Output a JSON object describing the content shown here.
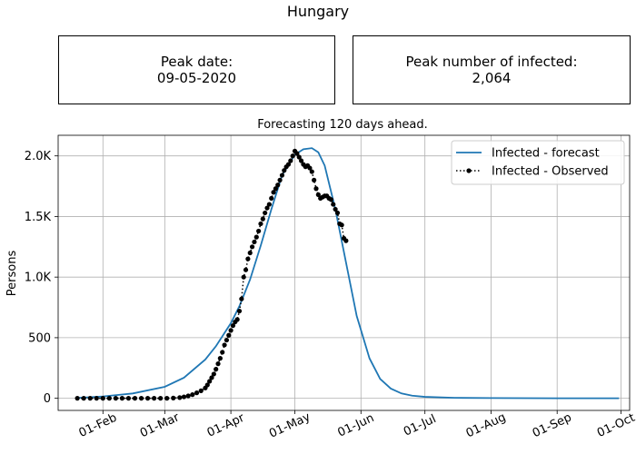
{
  "figure": {
    "title": "Hungary"
  },
  "kpis": [
    {
      "label": "Peak date:",
      "value": "09-05-2020"
    },
    {
      "label": "Peak number of infected:",
      "value": "2,064"
    }
  ],
  "chart_data": {
    "type": "line",
    "title": "Forecasting 120 days ahead.",
    "xlabel": "",
    "ylabel": "Persons",
    "x_axis": {
      "type": "date",
      "range": [
        "2020-01-11",
        "2020-10-05"
      ],
      "ticks": [
        {
          "date": "2020-02-01",
          "label": "01-Feb"
        },
        {
          "date": "2020-03-01",
          "label": "01-Mar"
        },
        {
          "date": "2020-04-01",
          "label": "01-Apr"
        },
        {
          "date": "2020-05-01",
          "label": "01-May"
        },
        {
          "date": "2020-06-01",
          "label": "01-Jun"
        },
        {
          "date": "2020-07-01",
          "label": "01-Jul"
        },
        {
          "date": "2020-08-01",
          "label": "01-Aug"
        },
        {
          "date": "2020-09-01",
          "label": "01-Sep"
        },
        {
          "date": "2020-10-01",
          "label": "01-Oct"
        }
      ]
    },
    "y_axis": {
      "range": [
        -100,
        2170
      ],
      "ticks": [
        {
          "value": 0,
          "label": "0"
        },
        {
          "value": 500,
          "label": "500"
        },
        {
          "value": 1000,
          "label": "1.0K"
        },
        {
          "value": 1500,
          "label": "1.5K"
        },
        {
          "value": 2000,
          "label": "2.0K"
        }
      ]
    },
    "grid": true,
    "legend": {
      "position": "top-right"
    },
    "series": [
      {
        "name": "Infected - forecast",
        "color": "#1f77b4",
        "style": "solid",
        "points": [
          [
            "2020-01-20",
            3
          ],
          [
            "2020-02-01",
            15
          ],
          [
            "2020-02-15",
            40
          ],
          [
            "2020-03-01",
            95
          ],
          [
            "2020-03-10",
            170
          ],
          [
            "2020-03-20",
            320
          ],
          [
            "2020-03-25",
            430
          ],
          [
            "2020-04-01",
            620
          ],
          [
            "2020-04-05",
            760
          ],
          [
            "2020-04-10",
            980
          ],
          [
            "2020-04-15",
            1260
          ],
          [
            "2020-04-20",
            1560
          ],
          [
            "2020-04-25",
            1840
          ],
          [
            "2020-05-01",
            2010
          ],
          [
            "2020-05-05",
            2055
          ],
          [
            "2020-05-09",
            2064
          ],
          [
            "2020-05-12",
            2030
          ],
          [
            "2020-05-15",
            1920
          ],
          [
            "2020-05-20",
            1560
          ],
          [
            "2020-05-25",
            1120
          ],
          [
            "2020-05-30",
            680
          ],
          [
            "2020-06-05",
            330
          ],
          [
            "2020-06-10",
            160
          ],
          [
            "2020-06-15",
            80
          ],
          [
            "2020-06-20",
            40
          ],
          [
            "2020-06-25",
            22
          ],
          [
            "2020-07-01",
            12
          ],
          [
            "2020-07-15",
            4
          ],
          [
            "2020-08-01",
            2
          ],
          [
            "2020-09-01",
            0
          ],
          [
            "2020-09-30",
            0
          ]
        ]
      },
      {
        "name": "Infected - Observed",
        "color": "#000000",
        "style": "dotted-markers",
        "points": [
          [
            "2020-01-20",
            0
          ],
          [
            "2020-01-23",
            0
          ],
          [
            "2020-01-26",
            0
          ],
          [
            "2020-01-29",
            0
          ],
          [
            "2020-02-01",
            0
          ],
          [
            "2020-02-04",
            0
          ],
          [
            "2020-02-07",
            0
          ],
          [
            "2020-02-10",
            0
          ],
          [
            "2020-02-13",
            0
          ],
          [
            "2020-02-16",
            0
          ],
          [
            "2020-02-19",
            0
          ],
          [
            "2020-02-22",
            0
          ],
          [
            "2020-02-25",
            0
          ],
          [
            "2020-02-28",
            0
          ],
          [
            "2020-03-02",
            0
          ],
          [
            "2020-03-05",
            2
          ],
          [
            "2020-03-08",
            6
          ],
          [
            "2020-03-10",
            12
          ],
          [
            "2020-03-12",
            20
          ],
          [
            "2020-03-14",
            30
          ],
          [
            "2020-03-16",
            45
          ],
          [
            "2020-03-18",
            62
          ],
          [
            "2020-03-20",
            85
          ],
          [
            "2020-03-21",
            110
          ],
          [
            "2020-03-22",
            140
          ],
          [
            "2020-03-23",
            170
          ],
          [
            "2020-03-24",
            200
          ],
          [
            "2020-03-25",
            240
          ],
          [
            "2020-03-26",
            285
          ],
          [
            "2020-03-27",
            330
          ],
          [
            "2020-03-28",
            380
          ],
          [
            "2020-03-29",
            440
          ],
          [
            "2020-03-30",
            480
          ],
          [
            "2020-03-31",
            520
          ],
          [
            "2020-04-01",
            560
          ],
          [
            "2020-04-02",
            600
          ],
          [
            "2020-04-03",
            630
          ],
          [
            "2020-04-04",
            650
          ],
          [
            "2020-04-05",
            720
          ],
          [
            "2020-04-06",
            820
          ],
          [
            "2020-04-07",
            1000
          ],
          [
            "2020-04-08",
            1060
          ],
          [
            "2020-04-09",
            1150
          ],
          [
            "2020-04-10",
            1200
          ],
          [
            "2020-04-11",
            1250
          ],
          [
            "2020-04-12",
            1290
          ],
          [
            "2020-04-13",
            1330
          ],
          [
            "2020-04-14",
            1380
          ],
          [
            "2020-04-15",
            1440
          ],
          [
            "2020-04-16",
            1480
          ],
          [
            "2020-04-17",
            1530
          ],
          [
            "2020-04-18",
            1570
          ],
          [
            "2020-04-19",
            1600
          ],
          [
            "2020-04-20",
            1650
          ],
          [
            "2020-04-21",
            1700
          ],
          [
            "2020-04-22",
            1730
          ],
          [
            "2020-04-23",
            1760
          ],
          [
            "2020-04-24",
            1800
          ],
          [
            "2020-04-25",
            1840
          ],
          [
            "2020-04-26",
            1880
          ],
          [
            "2020-04-27",
            1910
          ],
          [
            "2020-04-28",
            1930
          ],
          [
            "2020-04-29",
            1960
          ],
          [
            "2020-04-30",
            2000
          ],
          [
            "2020-05-01",
            2040
          ],
          [
            "2020-05-02",
            2020
          ],
          [
            "2020-05-03",
            1990
          ],
          [
            "2020-05-04",
            1960
          ],
          [
            "2020-05-05",
            1930
          ],
          [
            "2020-05-06",
            1910
          ],
          [
            "2020-05-07",
            1920
          ],
          [
            "2020-05-08",
            1900
          ],
          [
            "2020-05-09",
            1870
          ],
          [
            "2020-05-10",
            1800
          ],
          [
            "2020-05-11",
            1730
          ],
          [
            "2020-05-12",
            1680
          ],
          [
            "2020-05-13",
            1650
          ],
          [
            "2020-05-14",
            1660
          ],
          [
            "2020-05-15",
            1670
          ],
          [
            "2020-05-16",
            1670
          ],
          [
            "2020-05-17",
            1650
          ],
          [
            "2020-05-18",
            1640
          ],
          [
            "2020-05-19",
            1600
          ],
          [
            "2020-05-20",
            1560
          ],
          [
            "2020-05-21",
            1530
          ],
          [
            "2020-05-22",
            1440
          ],
          [
            "2020-05-23",
            1430
          ],
          [
            "2020-05-24",
            1320
          ],
          [
            "2020-05-25",
            1300
          ]
        ]
      }
    ]
  }
}
